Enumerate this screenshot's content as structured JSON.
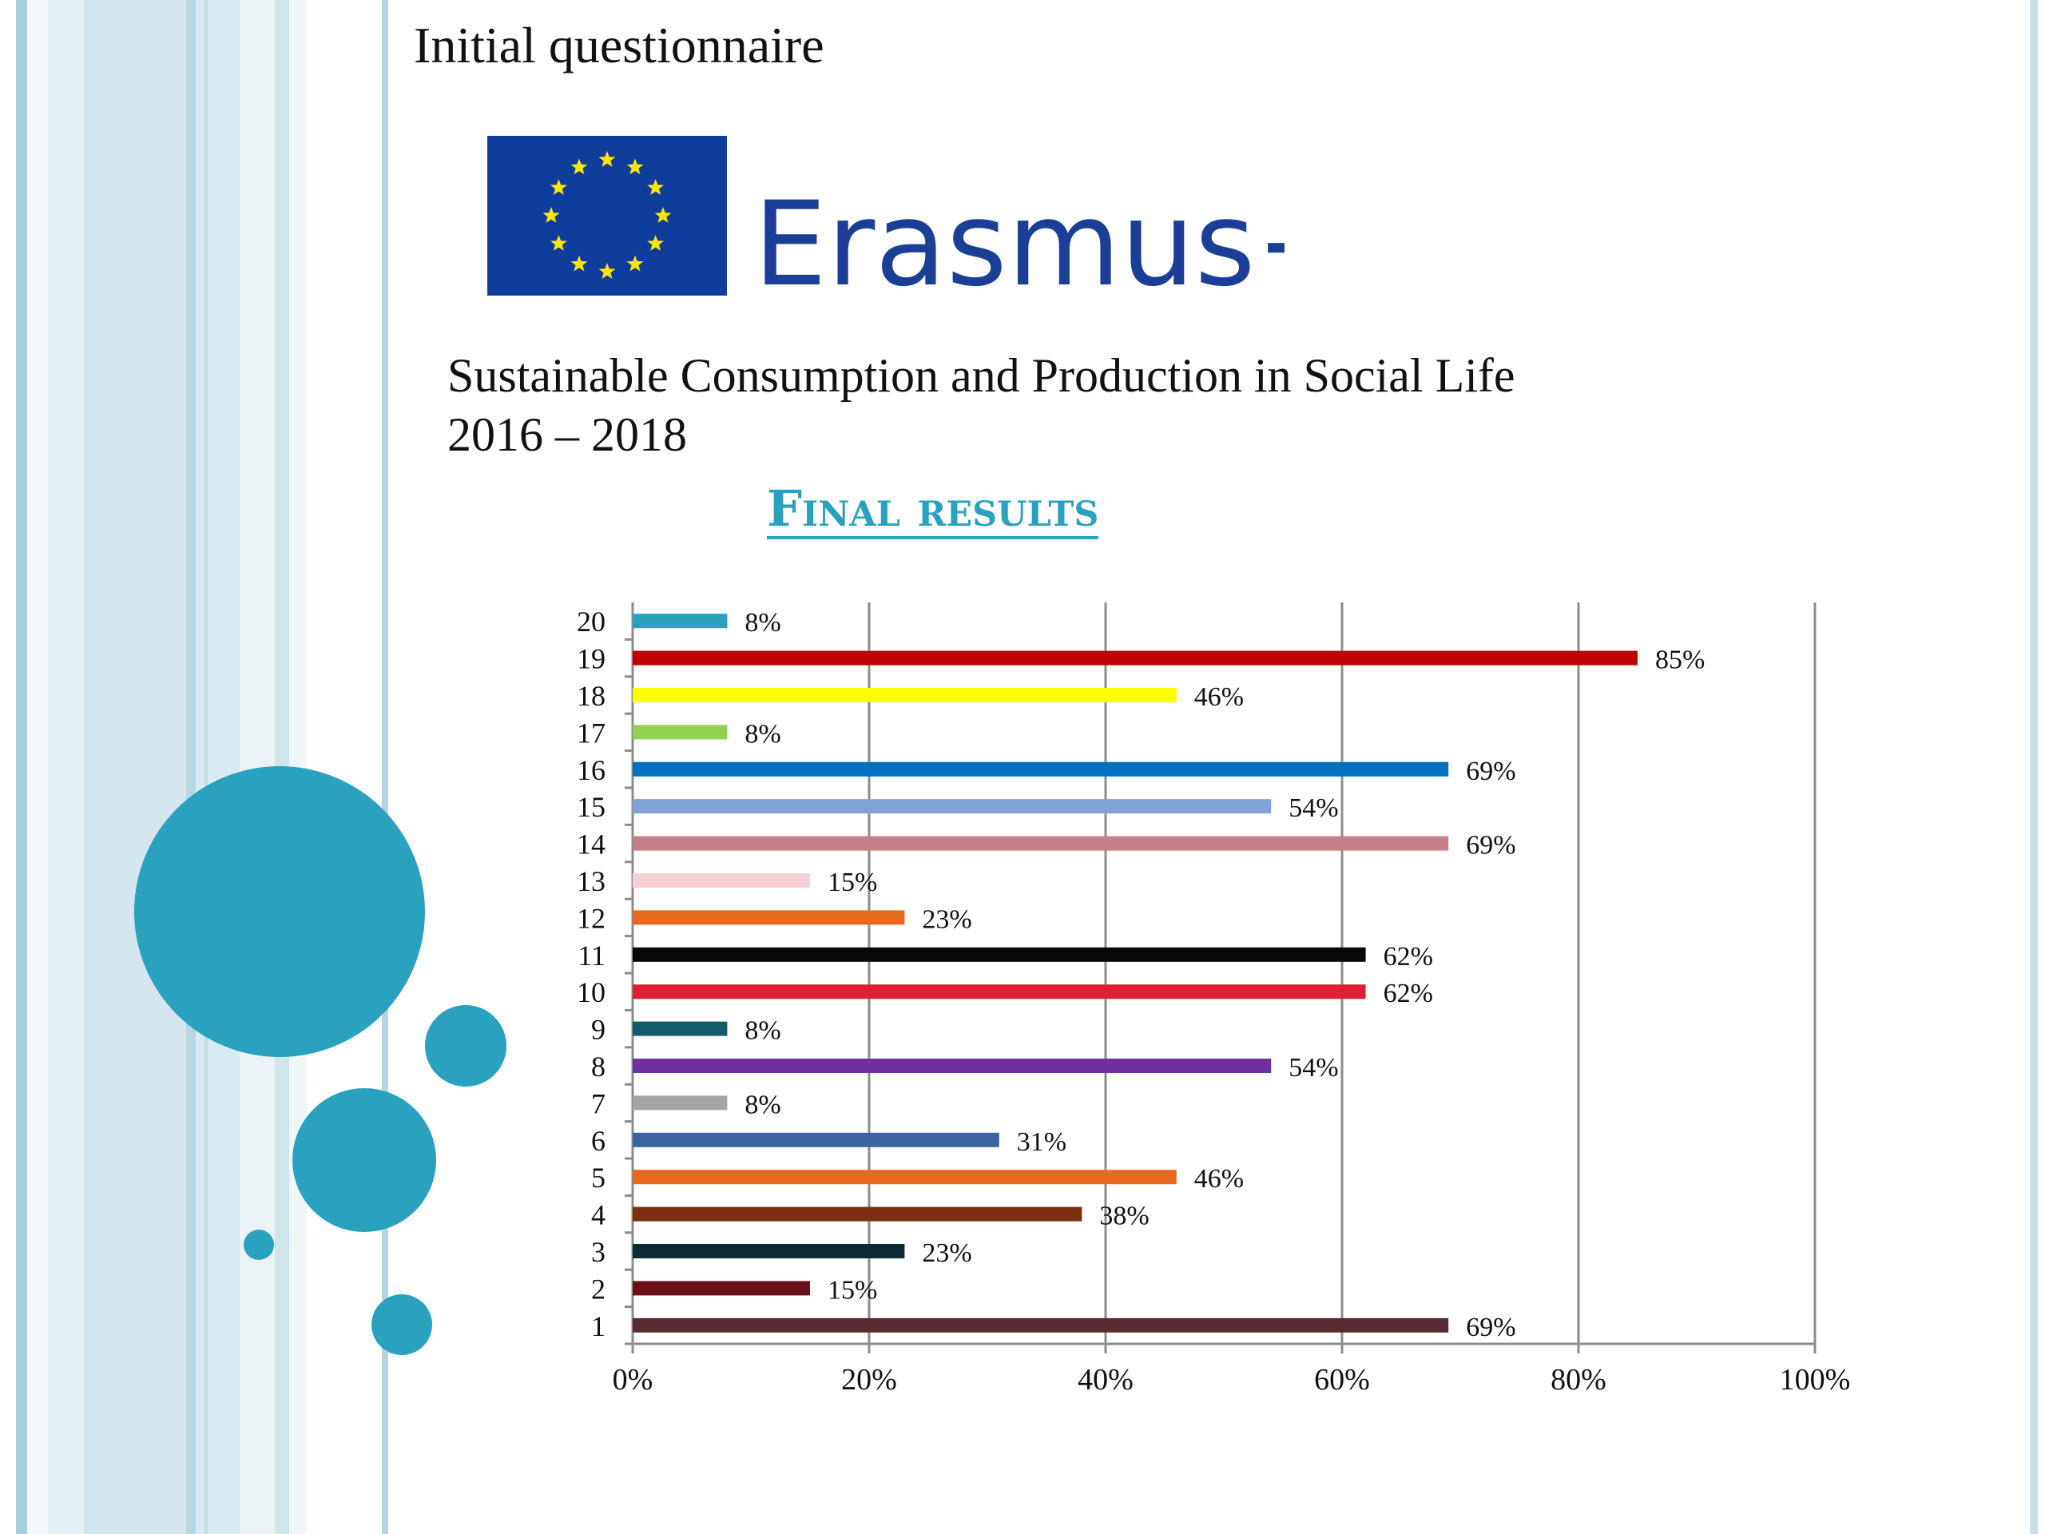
{
  "slide": {
    "header_title": "Initial questionnaire",
    "logo": {
      "text": "Erasmus+",
      "flag_color": "#0F3D9C",
      "star_color": "#FFE600",
      "text_color": "#1B3F96",
      "icon": "eu-flag-icon"
    },
    "subtitle_line1": "Sustainable Consumption and Production in Social Life",
    "subtitle_line2": "2016 – 2018",
    "section_title": "Final results",
    "accent_color": "#2AA1BE"
  },
  "chart_data": {
    "type": "bar",
    "orientation": "horizontal",
    "title": "",
    "xlabel": "",
    "ylabel": "",
    "xlim": [
      0,
      100
    ],
    "x_ticks": [
      "0%",
      "20%",
      "40%",
      "60%",
      "80%",
      "100%"
    ],
    "grid": true,
    "legend": "none",
    "categories": [
      "1",
      "2",
      "3",
      "4",
      "5",
      "6",
      "7",
      "8",
      "9",
      "10",
      "11",
      "12",
      "13",
      "14",
      "15",
      "16",
      "17",
      "18",
      "19",
      "20"
    ],
    "values": [
      69,
      15,
      23,
      38,
      46,
      31,
      8,
      54,
      8,
      62,
      62,
      23,
      15,
      69,
      54,
      69,
      8,
      46,
      85,
      8
    ],
    "labels": [
      "69%",
      "15%",
      "23%",
      "38%",
      "46%",
      "31%",
      "8%",
      "54%",
      "8%",
      "62%",
      "62%",
      "23%",
      "15%",
      "69%",
      "54%",
      "69%",
      "8%",
      "46%",
      "85%",
      "8%"
    ],
    "colors": [
      "#5A2B35",
      "#6B0F1A",
      "#0E2A36",
      "#7A3010",
      "#E8691F",
      "#3D62A0",
      "#A5A5A5",
      "#7030A0",
      "#135D6A",
      "#DC2234",
      "#080808",
      "#E8691F",
      "#F8CFD4",
      "#C47F88",
      "#7FA3D6",
      "#0070C0",
      "#92D050",
      "#FFFF00",
      "#C00000",
      "#2AA1BE"
    ]
  }
}
